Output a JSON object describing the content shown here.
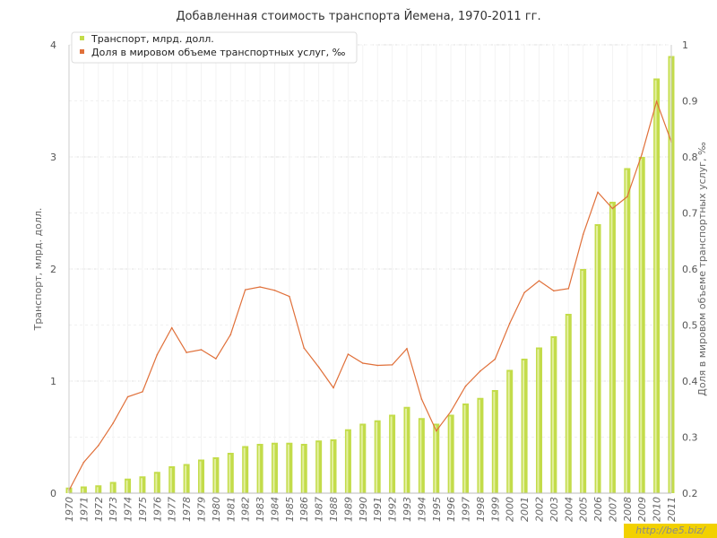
{
  "chart_data": {
    "type": "bar",
    "title": "Добавленная стоимость транспорта Йемена, 1970-2011 гг.",
    "ylabel": "Транспорт, млрд. долл.",
    "y2label": "Доля в мировом объеме транспортных услуг, ‰",
    "ylim": [
      0,
      4
    ],
    "y2lim": [
      0.2,
      1.0
    ],
    "yticks": [
      "0",
      "1",
      "2",
      "3",
      "4"
    ],
    "y2ticks": [
      "0.2",
      "0.3",
      "0.4",
      "0.5",
      "0.6",
      "0.7",
      "0.8",
      "0.9",
      "1"
    ],
    "grid": true,
    "legend_position": "top-left",
    "categories": [
      "1970",
      "1971",
      "1972",
      "1973",
      "1974",
      "1975",
      "1976",
      "1977",
      "1978",
      "1979",
      "1980",
      "1981",
      "1982",
      "1983",
      "1984",
      "1985",
      "1986",
      "1987",
      "1988",
      "1989",
      "1990",
      "1991",
      "1992",
      "1993",
      "1994",
      "1995",
      "1996",
      "1997",
      "1998",
      "1999",
      "2000",
      "2001",
      "2002",
      "2003",
      "2004",
      "2005",
      "2006",
      "2007",
      "2008",
      "2009",
      "2010",
      "2011"
    ],
    "series": [
      {
        "name": "Транспорт, млрд. долл.",
        "type": "bar",
        "axis": "left",
        "color": "#c3dc4a",
        "values": [
          0.05,
          0.06,
          0.07,
          0.1,
          0.13,
          0.15,
          0.19,
          0.24,
          0.26,
          0.3,
          0.32,
          0.36,
          0.42,
          0.44,
          0.45,
          0.45,
          0.44,
          0.47,
          0.48,
          0.57,
          0.62,
          0.65,
          0.7,
          0.77,
          0.67,
          0.62,
          0.7,
          0.8,
          0.85,
          0.92,
          1.1,
          1.2,
          1.3,
          1.4,
          1.6,
          2.0,
          2.4,
          2.6,
          2.9,
          3.0,
          3.7,
          3.9
        ]
      },
      {
        "name": "Доля в мировом объеме транспортных услуг, ‰",
        "type": "line",
        "axis": "right",
        "color": "#e0703a",
        "values": [
          0.205,
          0.255,
          0.285,
          0.325,
          0.372,
          0.381,
          0.447,
          0.495,
          0.451,
          0.456,
          0.44,
          0.483,
          0.563,
          0.568,
          0.562,
          0.551,
          0.459,
          0.425,
          0.388,
          0.448,
          0.432,
          0.428,
          0.429,
          0.458,
          0.368,
          0.311,
          0.346,
          0.391,
          0.418,
          0.439,
          0.503,
          0.558,
          0.579,
          0.561,
          0.565,
          0.662,
          0.737,
          0.708,
          0.729,
          0.805,
          0.899,
          0.827
        ]
      }
    ]
  },
  "watermark": "http://be5.biz/"
}
